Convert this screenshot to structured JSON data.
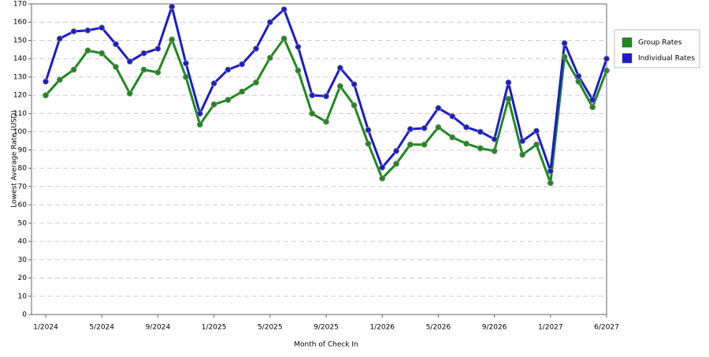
{
  "chart_data": {
    "type": "line",
    "xlabel": "Month of Check In",
    "ylabel": "Lowest Average Rate (USD)",
    "categories": [
      "1/2024",
      null,
      null,
      null,
      "5/2024",
      null,
      null,
      null,
      "9/2024",
      null,
      null,
      null,
      "1/2025",
      null,
      null,
      null,
      "5/2025",
      null,
      null,
      null,
      "9/2025",
      null,
      null,
      null,
      "1/2026",
      null,
      null,
      null,
      "5/2026",
      null,
      null,
      null,
      "9/2026",
      null,
      null,
      null,
      "1/2027",
      null,
      null,
      null,
      "6/2027"
    ],
    "series": [
      {
        "name": "Group Rates",
        "color": "#1e8a1e",
        "values": [
          120,
          128.5,
          134,
          144.5,
          143,
          135.5,
          121,
          134,
          132.5,
          150.5,
          130,
          104,
          115,
          117.5,
          122,
          127,
          140.5,
          151,
          133.5,
          110,
          105.5,
          125,
          114.5,
          93.5,
          74.5,
          82.5,
          93,
          93,
          102.5,
          97,
          93.5,
          91,
          89.5,
          118,
          87.5,
          93,
          72,
          141,
          127.5,
          113.5,
          133.5
        ]
      },
      {
        "name": "Individual Rates",
        "color": "#1c1ccc",
        "values": [
          127.5,
          151,
          155,
          155.5,
          157,
          148,
          138.5,
          143,
          145.5,
          168.5,
          137.5,
          110,
          126.5,
          134,
          137,
          145.5,
          160,
          167,
          146.5,
          120,
          119.5,
          135,
          126,
          101,
          80.5,
          89.5,
          101.5,
          102,
          113,
          108.5,
          102.5,
          100,
          96,
          127,
          95,
          100.5,
          78.5,
          148.5,
          130.5,
          117.5,
          140
        ]
      }
    ],
    "ylim": [
      0,
      170
    ],
    "yticks": [
      0,
      10,
      20,
      30,
      40,
      50,
      60,
      70,
      80,
      90,
      100,
      110,
      120,
      130,
      140,
      150,
      160,
      170
    ],
    "grid": true,
    "legend": "right"
  }
}
